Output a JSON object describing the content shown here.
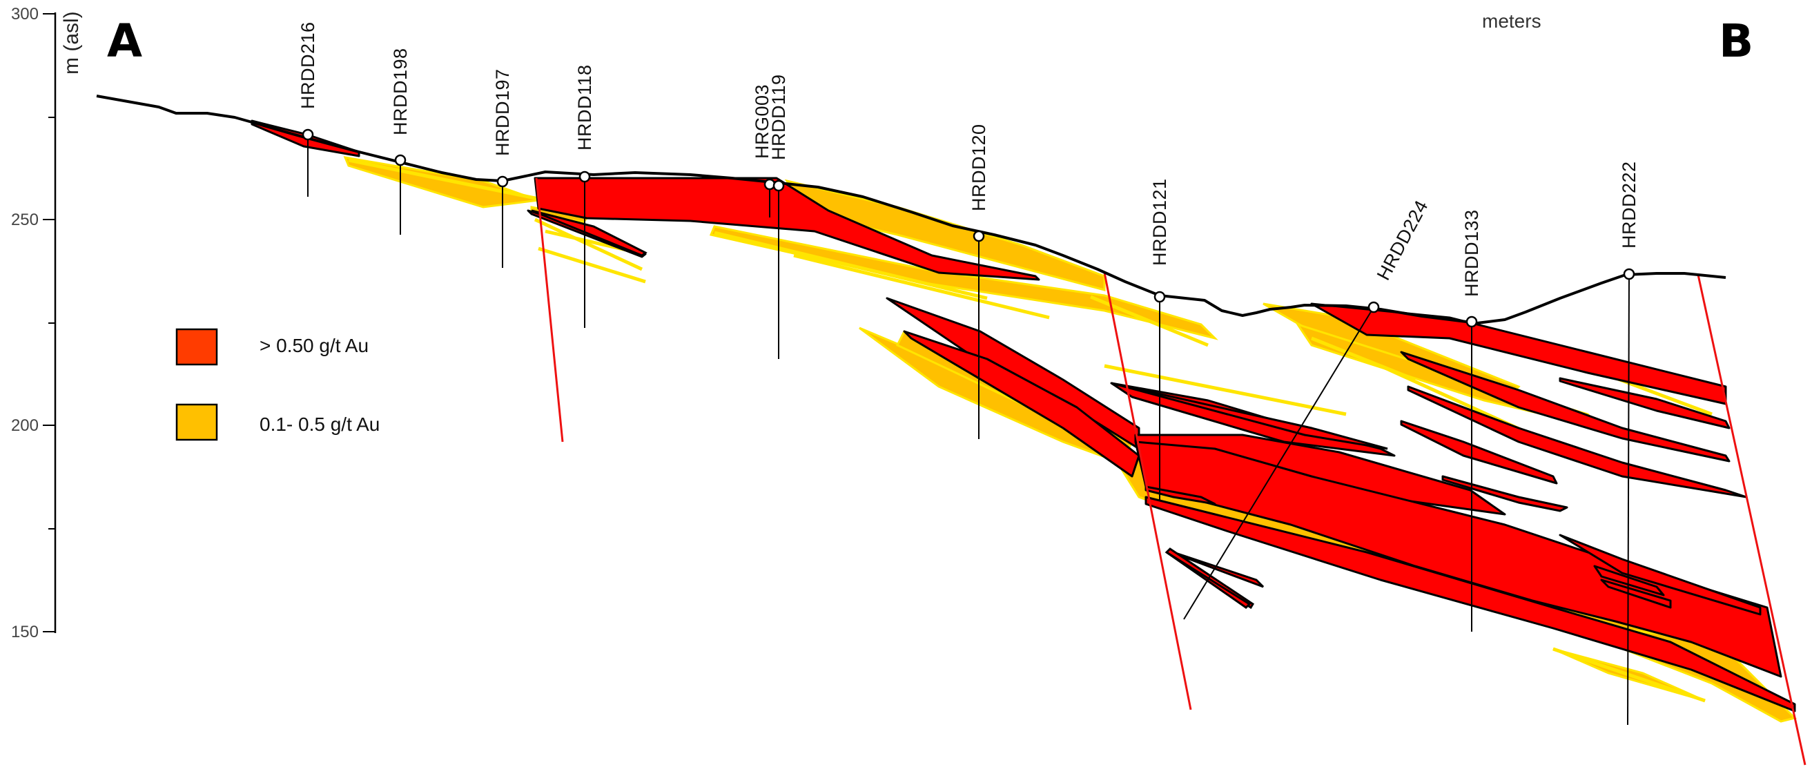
{
  "section": {
    "left_label": "A",
    "right_label": "B",
    "units_label": "meters"
  },
  "axis": {
    "title": "m (asl)",
    "ticks": [
      "300",
      "250",
      "200",
      "150"
    ]
  },
  "drillholes": [
    {
      "id": "HRDD216"
    },
    {
      "id": "HRDD198"
    },
    {
      "id": "HRDD197"
    },
    {
      "id": "HRDD118"
    },
    {
      "id": "HRG003"
    },
    {
      "id": "HRDD119"
    },
    {
      "id": "HRDD120"
    },
    {
      "id": "HRDD121"
    },
    {
      "id": "HRDD224"
    },
    {
      "id": "HRDD133"
    },
    {
      "id": "HRDD222"
    }
  ],
  "legend": [
    {
      "label": "> 0.50 g/t Au",
      "color": "#ff3c00"
    },
    {
      "label": "0.1- 0.5 g/t Au",
      "color": "#ffc000"
    }
  ],
  "colors": {
    "high_grade": "#ff0000",
    "low_grade": "#ffc000",
    "low_grade_stringer": "#ffe500",
    "fault": "#ee1111",
    "outline": "#000000"
  }
}
